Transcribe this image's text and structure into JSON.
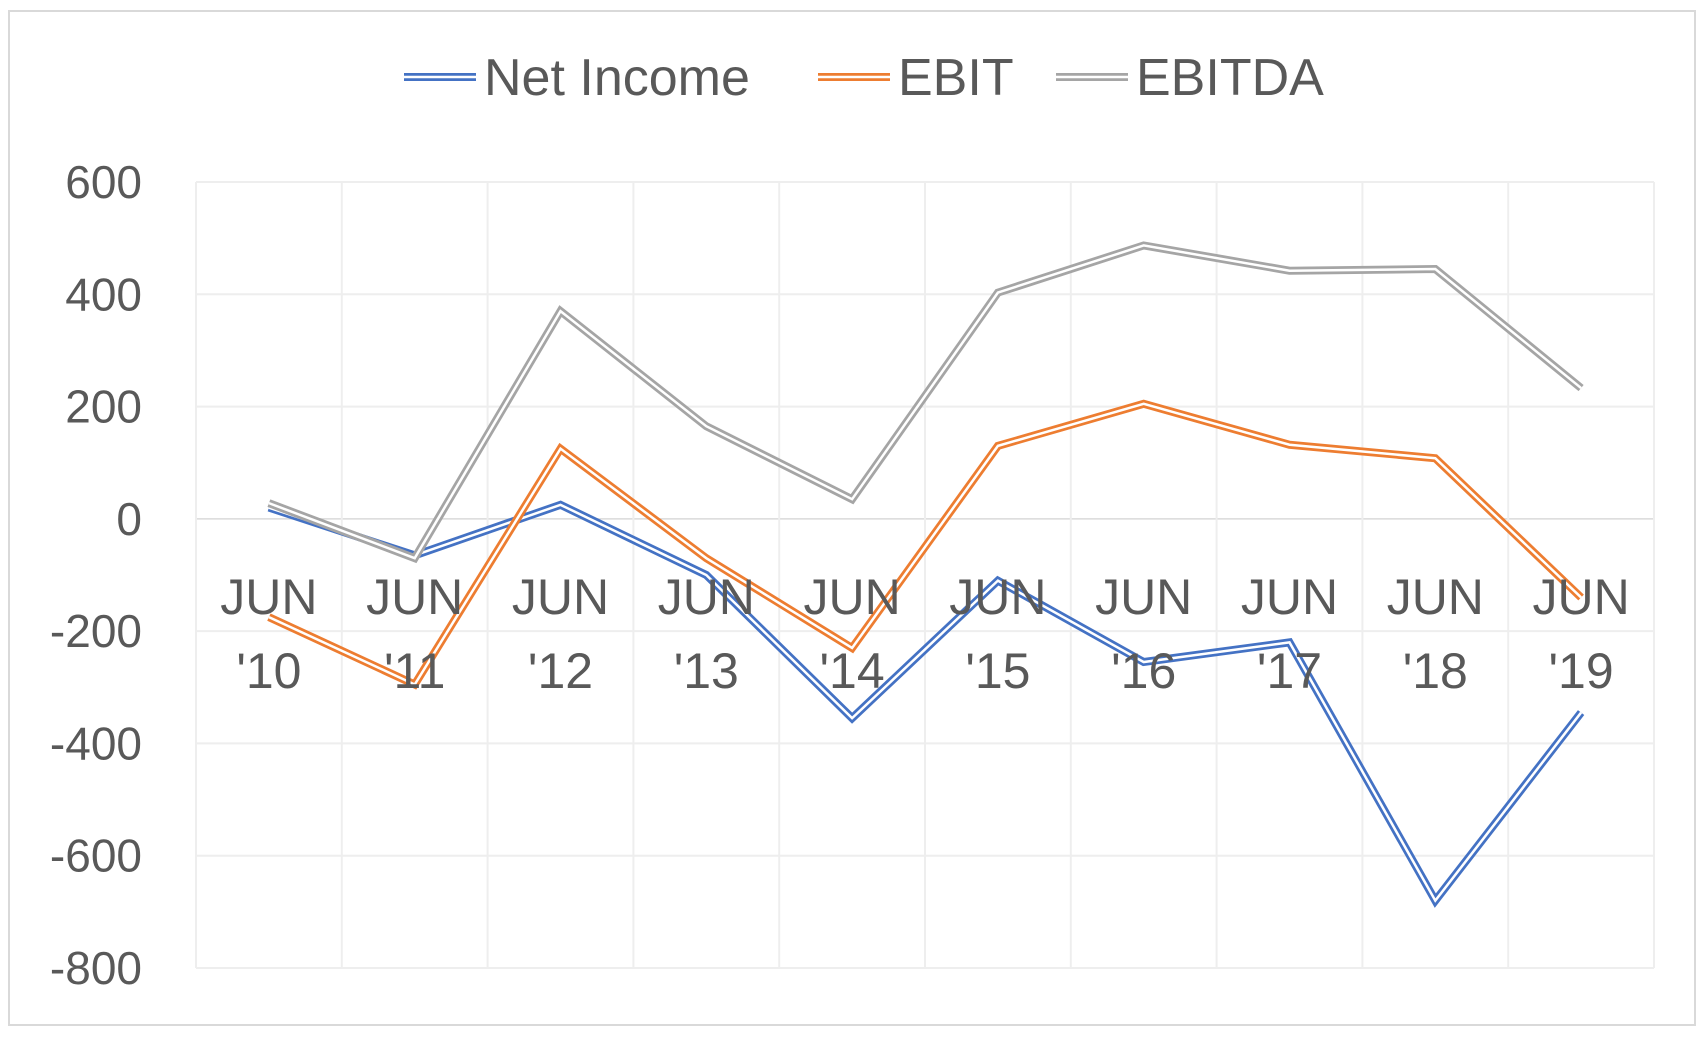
{
  "chart_data": {
    "type": "line",
    "title": "",
    "xlabel": "",
    "ylabel": "",
    "categories": [
      "JUN '10",
      "JUN '11",
      "JUN '12",
      "JUN '13",
      "JUN '14",
      "JUN '15",
      "JUN '16",
      "JUN '17",
      "JUN '18",
      "JUN '19"
    ],
    "category_lines": [
      [
        "JUN",
        "'10"
      ],
      [
        "JUN",
        "'11"
      ],
      [
        "JUN",
        "'12"
      ],
      [
        "JUN",
        "'13"
      ],
      [
        "JUN",
        "'14"
      ],
      [
        "JUN",
        "'15"
      ],
      [
        "JUN",
        "'16"
      ],
      [
        "JUN",
        "'17"
      ],
      [
        "JUN",
        "'18"
      ],
      [
        "JUN",
        "'19"
      ]
    ],
    "ylim": [
      -800,
      600
    ],
    "yticks": [
      600,
      400,
      200,
      0,
      -200,
      -400,
      -600,
      -800
    ],
    "ytick_labels": [
      "600",
      "400",
      "200",
      "0",
      "-200",
      "-400",
      "-600",
      "-800"
    ],
    "grid": true,
    "legend_position": "top",
    "line_style": "double",
    "series": [
      {
        "name": "Net Income",
        "color": "#4472C4",
        "values": [
          20,
          -65,
          25,
          -100,
          -355,
          -110,
          -255,
          -220,
          -680,
          -345
        ]
      },
      {
        "name": "EBIT",
        "color": "#ED7D31",
        "values": [
          -175,
          -295,
          125,
          -70,
          -230,
          130,
          205,
          132,
          108,
          -140
        ]
      },
      {
        "name": "EBITDA",
        "color": "#A5A5A5",
        "values": [
          28,
          -70,
          370,
          165,
          35,
          403,
          487,
          442,
          445,
          233
        ]
      }
    ]
  }
}
